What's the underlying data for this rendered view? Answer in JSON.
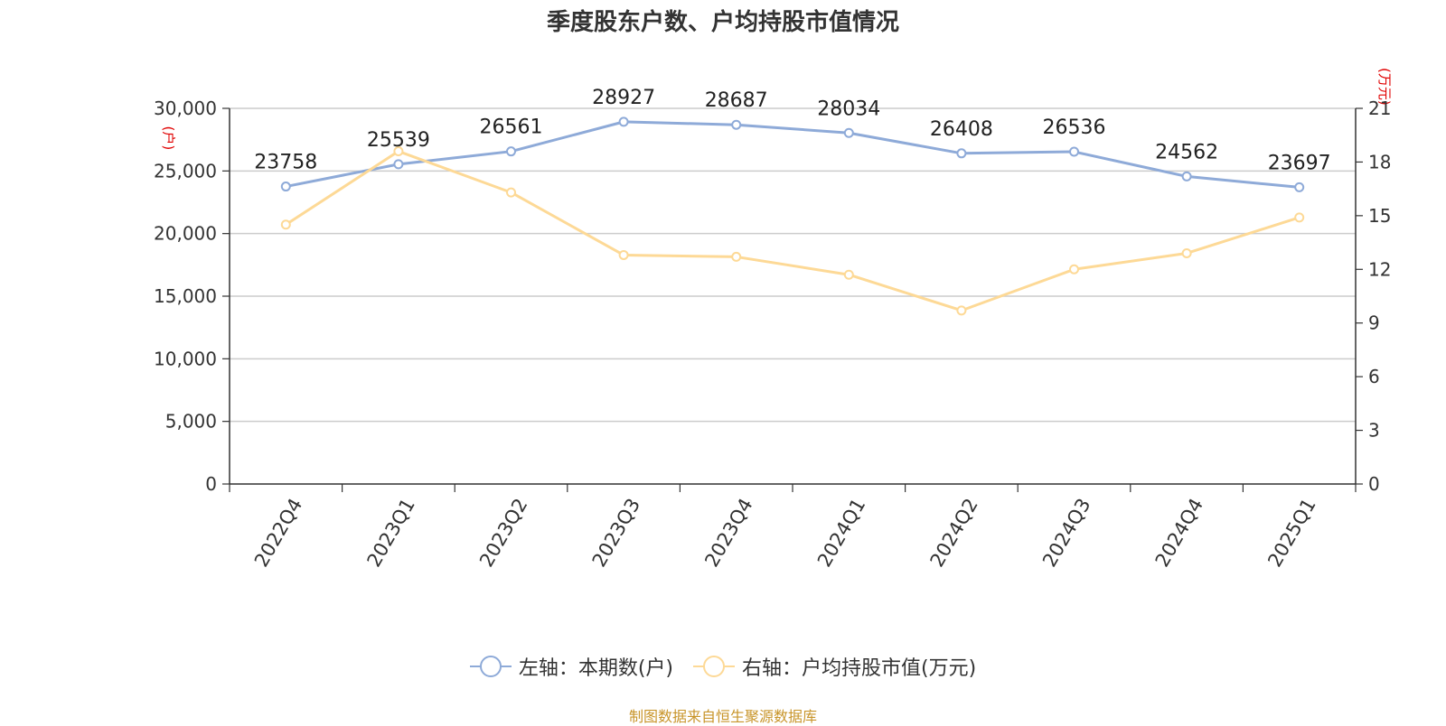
{
  "chart_data": {
    "type": "line",
    "title": "季度股东户数、户均持股市值情况",
    "categories": [
      "2022Q4",
      "2023Q1",
      "2023Q2",
      "2023Q3",
      "2023Q4",
      "2024Q1",
      "2024Q2",
      "2024Q3",
      "2024Q4",
      "2025Q1"
    ],
    "series": [
      {
        "name": "左轴：本期数(户)",
        "axis": "left",
        "color": "#8eaad8",
        "values": [
          23758,
          25539,
          26561,
          28927,
          28687,
          28034,
          26408,
          26536,
          24562,
          23697
        ],
        "data_labels": [
          "23758",
          "25539",
          "26561",
          "28927",
          "28687",
          "28034",
          "26408",
          "26536",
          "24562",
          "23697"
        ]
      },
      {
        "name": "右轴：户均持股市值(万元)",
        "axis": "right",
        "color": "#fdd996",
        "values": [
          14.5,
          18.6,
          16.3,
          12.8,
          12.7,
          11.7,
          9.7,
          12.0,
          12.9,
          14.9
        ]
      }
    ],
    "y_left": {
      "unit": "(户)",
      "min": 0,
      "max": 30000,
      "ticks": [
        0,
        5000,
        10000,
        15000,
        20000,
        25000,
        30000
      ],
      "tick_labels": [
        "0",
        "5,000",
        "10,000",
        "15,000",
        "20,000",
        "25,000",
        "30,000"
      ]
    },
    "y_right": {
      "unit": "(万元)",
      "min": 0,
      "max": 21,
      "ticks": [
        0,
        3,
        6,
        9,
        12,
        15,
        18,
        21
      ],
      "tick_labels": [
        "0",
        "3",
        "6",
        "9",
        "12",
        "15",
        "18",
        "21"
      ]
    },
    "grid": true,
    "legend_position": "bottom-center"
  },
  "source": "制图数据来自恒生聚源数据库"
}
